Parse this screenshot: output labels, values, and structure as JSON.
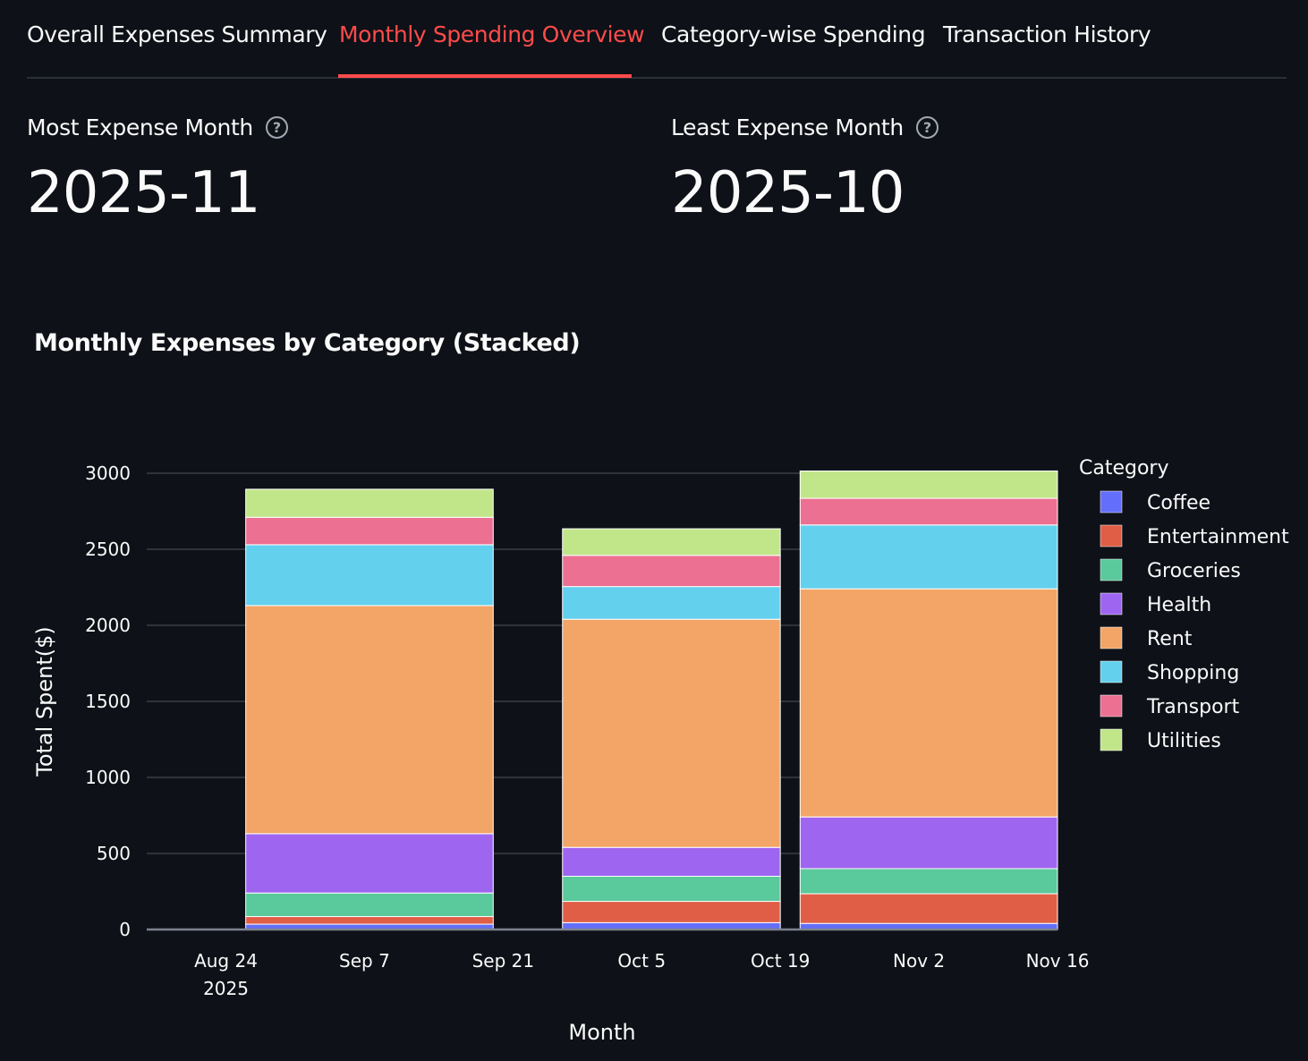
{
  "tabs": [
    {
      "label": "Overall Expenses Summary",
      "active": false
    },
    {
      "label": "Monthly Spending Overview",
      "active": true
    },
    {
      "label": "Category-wise Spending",
      "active": false
    },
    {
      "label": "Transaction History",
      "active": false
    }
  ],
  "metrics": {
    "most": {
      "label": "Most Expense Month",
      "value": "2025-11",
      "icon": "help-circle-icon"
    },
    "least": {
      "label": "Least Expense Month",
      "value": "2025-10",
      "icon": "help-circle-icon"
    }
  },
  "colors": {
    "background": "#0e1117",
    "accent": "#ff4b4b",
    "text": "#fafafa",
    "grid": "#3a3d45"
  },
  "chart_data": {
    "type": "bar",
    "stacked": true,
    "title": "Monthly Expenses by Category (Stacked)",
    "xlabel": "Month",
    "ylabel": "Total Spent($)",
    "ylim": [
      0,
      3000
    ],
    "yticks": [
      0,
      500,
      1000,
      1500,
      2000,
      2500,
      3000
    ],
    "x_axis_type": "date",
    "xticks": [
      {
        "date": "2025-08-24",
        "label": "Aug 24",
        "sublabel": "2025"
      },
      {
        "date": "2025-09-07",
        "label": "Sep 7",
        "sublabel": ""
      },
      {
        "date": "2025-09-21",
        "label": "Sep 21",
        "sublabel": ""
      },
      {
        "date": "2025-10-05",
        "label": "Oct 5",
        "sublabel": ""
      },
      {
        "date": "2025-10-19",
        "label": "Oct 19",
        "sublabel": ""
      },
      {
        "date": "2025-11-02",
        "label": "Nov 2",
        "sublabel": ""
      },
      {
        "date": "2025-11-16",
        "label": "Nov 16",
        "sublabel": ""
      }
    ],
    "x_range": [
      "2025-08-16",
      "2025-11-16"
    ],
    "bars": [
      {
        "date_start": "2025-08-26",
        "date_end": "2025-09-20"
      },
      {
        "date_start": "2025-09-27",
        "date_end": "2025-10-19"
      },
      {
        "date_start": "2025-10-21",
        "date_end": "2025-11-16"
      }
    ],
    "categories": [
      "2025-09",
      "2025-10",
      "2025-11"
    ],
    "legend_title": "Category",
    "legend_position": "right",
    "grid": true,
    "series": [
      {
        "name": "Coffee",
        "color": "#636efa",
        "values": [
          35,
          45,
          40
        ]
      },
      {
        "name": "Entertainment",
        "color": "#e05e46",
        "values": [
          50,
          140,
          195
        ]
      },
      {
        "name": "Groceries",
        "color": "#5ac99b",
        "values": [
          155,
          165,
          165
        ]
      },
      {
        "name": "Health",
        "color": "#9e66f0",
        "values": [
          390,
          190,
          340
        ]
      },
      {
        "name": "Rent",
        "color": "#f2a566",
        "values": [
          1500,
          1500,
          1500
        ]
      },
      {
        "name": "Shopping",
        "color": "#63d0ee",
        "values": [
          400,
          215,
          420
        ]
      },
      {
        "name": "Transport",
        "color": "#ec7092",
        "values": [
          180,
          205,
          175
        ]
      },
      {
        "name": "Utilities",
        "color": "#c1e68a",
        "values": [
          185,
          175,
          180
        ]
      }
    ]
  }
}
